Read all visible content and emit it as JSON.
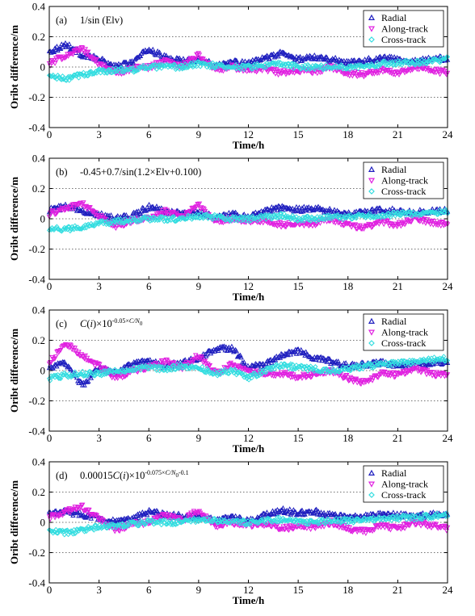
{
  "chart_data": [
    {
      "type": "scatter",
      "panel_label": "(a)",
      "title": "1/sin (Elv)",
      "title_parts": [
        {
          "t": "1/sin (Elv)",
          "style": "normal"
        }
      ],
      "xlabel": "Time/h",
      "ylabel": "Oribt difference/m",
      "xlim": [
        0,
        24
      ],
      "ylim": [
        -0.4,
        0.4
      ],
      "xticks": [
        "0",
        "3",
        "6",
        "9",
        "12",
        "15",
        "18",
        "21",
        "24"
      ],
      "yticks": [
        "0.4",
        "0.2",
        "0",
        "-0.2",
        "-0.4"
      ],
      "grid": "dotted horizontal",
      "legend_position": "top-right",
      "series": [
        {
          "name": "Radial",
          "marker": "triangle-up",
          "color": "#1f1fbf",
          "x": [
            0,
            1,
            2,
            3,
            4,
            5,
            6,
            7,
            8,
            9,
            10,
            11,
            12,
            13,
            14,
            15,
            16,
            17,
            18,
            19,
            20,
            21,
            22,
            23,
            24
          ],
          "y": [
            0.1,
            0.15,
            0.08,
            0.05,
            0.0,
            0.03,
            0.12,
            0.06,
            0.04,
            0.05,
            0.01,
            0.03,
            0.02,
            0.06,
            0.09,
            0.05,
            0.07,
            0.05,
            0.03,
            0.04,
            0.06,
            0.05,
            0.04,
            0.05,
            0.06
          ]
        },
        {
          "name": "Along-track",
          "marker": "triangle-down",
          "color": "#e020e0",
          "x": [
            0,
            1,
            2,
            3,
            4,
            5,
            6,
            7,
            8,
            9,
            10,
            11,
            12,
            13,
            14,
            15,
            16,
            17,
            18,
            19,
            20,
            21,
            22,
            23,
            24
          ],
          "y": [
            0.02,
            0.08,
            0.12,
            0.02,
            -0.04,
            -0.01,
            0.0,
            0.04,
            0.01,
            0.08,
            -0.02,
            0.0,
            -0.02,
            -0.01,
            -0.04,
            -0.02,
            -0.03,
            0.0,
            -0.04,
            -0.05,
            -0.02,
            -0.04,
            0.0,
            -0.02,
            -0.04
          ]
        },
        {
          "name": "Cross-track",
          "marker": "diamond",
          "color": "#33dde0",
          "x": [
            0,
            1,
            2,
            3,
            4,
            5,
            6,
            7,
            8,
            9,
            10,
            11,
            12,
            13,
            14,
            15,
            16,
            17,
            18,
            19,
            20,
            21,
            22,
            23,
            24
          ],
          "y": [
            -0.06,
            -0.08,
            -0.05,
            -0.03,
            -0.02,
            -0.02,
            0.0,
            0.0,
            0.0,
            0.02,
            0.01,
            0.0,
            0.0,
            0.01,
            0.02,
            0.0,
            0.0,
            0.0,
            0.0,
            0.01,
            0.02,
            0.03,
            0.03,
            0.04,
            0.05
          ]
        }
      ]
    },
    {
      "type": "scatter",
      "panel_label": "(b)",
      "title": "-0.45+0.7/sin(1.2×Elv+0.100)",
      "title_parts": [
        {
          "t": "-0.45+0.7/sin(1.2×Elv+0.100)",
          "style": "normal"
        }
      ],
      "xlabel": "Time/h",
      "ylabel": "Oribt difference/m",
      "xlim": [
        0,
        24
      ],
      "ylim": [
        -0.4,
        0.4
      ],
      "xticks": [
        "0",
        "3",
        "6",
        "9",
        "12",
        "15",
        "18",
        "21",
        "24"
      ],
      "yticks": [
        "0.4",
        "0.2",
        "0",
        "-0.2",
        "-0.4"
      ],
      "grid": "dotted horizontal",
      "legend_position": "top-right",
      "series": [
        {
          "name": "Radial",
          "marker": "triangle-up",
          "color": "#1f1fbf",
          "x": [
            0,
            1,
            2,
            3,
            4,
            5,
            6,
            7,
            8,
            9,
            10,
            11,
            12,
            13,
            14,
            15,
            16,
            17,
            18,
            19,
            20,
            21,
            22,
            23,
            24
          ],
          "y": [
            0.06,
            0.08,
            0.05,
            0.03,
            0.0,
            0.02,
            0.08,
            0.05,
            0.04,
            0.04,
            0.01,
            0.03,
            0.01,
            0.05,
            0.08,
            0.06,
            0.07,
            0.05,
            0.03,
            0.04,
            0.06,
            0.05,
            0.04,
            0.05,
            0.06
          ]
        },
        {
          "name": "Along-track",
          "marker": "triangle-down",
          "color": "#e020e0",
          "x": [
            0,
            1,
            2,
            3,
            4,
            5,
            6,
            7,
            8,
            9,
            10,
            11,
            12,
            13,
            14,
            15,
            16,
            17,
            18,
            19,
            20,
            21,
            22,
            23,
            24
          ],
          "y": [
            0.03,
            0.07,
            0.1,
            0.02,
            -0.05,
            -0.01,
            0.0,
            0.05,
            0.01,
            0.09,
            -0.02,
            0.0,
            -0.02,
            -0.01,
            -0.04,
            -0.03,
            -0.03,
            0.0,
            -0.04,
            -0.06,
            -0.02,
            -0.04,
            0.0,
            -0.02,
            -0.04
          ]
        },
        {
          "name": "Cross-track",
          "marker": "diamond",
          "color": "#33dde0",
          "x": [
            0,
            1,
            2,
            3,
            4,
            5,
            6,
            7,
            8,
            9,
            10,
            11,
            12,
            13,
            14,
            15,
            16,
            17,
            18,
            19,
            20,
            21,
            22,
            23,
            24
          ],
          "y": [
            -0.06,
            -0.07,
            -0.05,
            -0.03,
            -0.02,
            -0.01,
            0.0,
            0.0,
            0.0,
            0.02,
            0.01,
            0.0,
            0.0,
            0.01,
            0.02,
            0.0,
            0.0,
            0.01,
            0.01,
            0.02,
            0.02,
            0.03,
            0.03,
            0.04,
            0.05
          ]
        }
      ]
    },
    {
      "type": "scatter",
      "panel_label": "(c)",
      "title": "C(i)×10^(-0.05×C/N0)",
      "title_parts": [
        {
          "t": "C",
          "style": "italic"
        },
        {
          "t": "(",
          "style": "normal"
        },
        {
          "t": "i",
          "style": "italic"
        },
        {
          "t": ")×10",
          "style": "normal"
        },
        {
          "t": "-0.05×",
          "style": "sup"
        },
        {
          "t": "C/N",
          "style": "sup-italic"
        },
        {
          "t": "0",
          "style": "sub"
        }
      ],
      "xlabel": "Time/h",
      "ylabel": "Oribt difference/m",
      "xlim": [
        0,
        24
      ],
      "ylim": [
        -0.4,
        0.4
      ],
      "xticks": [
        "0",
        "3",
        "6",
        "9",
        "12",
        "15",
        "18",
        "21",
        "24"
      ],
      "yticks": [
        "0.4",
        "0.2",
        "0",
        "-0.2",
        "-0.4"
      ],
      "grid": "dotted horizontal",
      "legend_position": "top-right",
      "series": [
        {
          "name": "Radial",
          "marker": "triangle-up",
          "color": "#1f1fbf",
          "x": [
            0,
            1,
            2,
            3,
            4,
            5,
            6,
            7,
            8,
            9,
            10,
            11,
            12,
            13,
            14,
            15,
            16,
            17,
            18,
            19,
            20,
            21,
            22,
            23,
            24
          ],
          "y": [
            0.02,
            0.05,
            -0.1,
            0.02,
            -0.02,
            0.04,
            0.06,
            0.03,
            0.05,
            0.08,
            0.14,
            0.15,
            0.02,
            0.04,
            0.1,
            0.13,
            0.08,
            0.06,
            0.03,
            0.04,
            0.05,
            0.04,
            0.04,
            0.05,
            0.06
          ]
        },
        {
          "name": "Along-track",
          "marker": "triangle-down",
          "color": "#e020e0",
          "x": [
            0,
            1,
            2,
            3,
            4,
            5,
            6,
            7,
            8,
            9,
            10,
            11,
            12,
            13,
            14,
            15,
            16,
            17,
            18,
            19,
            20,
            21,
            22,
            23,
            24
          ],
          "y": [
            0.05,
            0.18,
            0.1,
            0.03,
            -0.05,
            0.0,
            0.02,
            0.06,
            0.02,
            0.1,
            -0.02,
            0.04,
            -0.01,
            -0.02,
            -0.02,
            -0.04,
            -0.03,
            0.0,
            -0.05,
            -0.08,
            -0.02,
            -0.03,
            0.02,
            -0.02,
            -0.03
          ]
        },
        {
          "name": "Cross-track",
          "marker": "diamond",
          "color": "#33dde0",
          "x": [
            0,
            1,
            2,
            3,
            4,
            5,
            6,
            7,
            8,
            9,
            10,
            11,
            12,
            13,
            14,
            15,
            16,
            17,
            18,
            19,
            20,
            21,
            22,
            23,
            24
          ],
          "y": [
            -0.05,
            -0.03,
            -0.02,
            -0.02,
            0.0,
            0.01,
            0.02,
            0.01,
            0.03,
            0.02,
            -0.02,
            0.0,
            -0.05,
            0.0,
            0.04,
            0.02,
            0.01,
            0.0,
            0.01,
            0.03,
            0.04,
            0.05,
            0.06,
            0.07,
            0.08
          ]
        }
      ]
    },
    {
      "type": "scatter",
      "panel_label": "(d)",
      "title": "0.00015C(i)×10^(-0.075×C/N0-0.1)",
      "title_parts": [
        {
          "t": "0.00015",
          "style": "normal"
        },
        {
          "t": "C",
          "style": "italic"
        },
        {
          "t": "(",
          "style": "normal"
        },
        {
          "t": "i",
          "style": "italic"
        },
        {
          "t": ")×10",
          "style": "normal"
        },
        {
          "t": "-0.075×",
          "style": "sup"
        },
        {
          "t": "C/N",
          "style": "sup-italic"
        },
        {
          "t": "0",
          "style": "sub"
        },
        {
          "t": "-0.1",
          "style": "sup"
        }
      ],
      "xlabel": "Time/h",
      "ylabel": "Oribt difference/m",
      "xlim": [
        0,
        24
      ],
      "ylim": [
        -0.4,
        0.4
      ],
      "xticks": [
        "0",
        "3",
        "6",
        "9",
        "12",
        "15",
        "18",
        "21",
        "24"
      ],
      "yticks": [
        "0.4",
        "0.2",
        "0",
        "-0.2",
        "-0.4"
      ],
      "grid": "dotted horizontal",
      "legend_position": "top-right",
      "series": [
        {
          "name": "Radial",
          "marker": "triangle-up",
          "color": "#1f1fbf",
          "x": [
            0,
            1,
            2,
            3,
            4,
            5,
            6,
            7,
            8,
            9,
            10,
            11,
            12,
            13,
            14,
            15,
            16,
            17,
            18,
            19,
            20,
            21,
            22,
            23,
            24
          ],
          "y": [
            0.06,
            0.07,
            0.05,
            0.03,
            0.0,
            0.02,
            0.07,
            0.05,
            0.04,
            0.04,
            0.01,
            0.03,
            0.01,
            0.05,
            0.08,
            0.06,
            0.07,
            0.05,
            0.03,
            0.04,
            0.05,
            0.05,
            0.04,
            0.05,
            0.06
          ]
        },
        {
          "name": "Along-track",
          "marker": "triangle-down",
          "color": "#e020e0",
          "x": [
            0,
            1,
            2,
            3,
            4,
            5,
            6,
            7,
            8,
            9,
            10,
            11,
            12,
            13,
            14,
            15,
            16,
            17,
            18,
            19,
            20,
            21,
            22,
            23,
            24
          ],
          "y": [
            0.03,
            0.07,
            0.1,
            0.02,
            -0.05,
            -0.01,
            0.0,
            0.05,
            0.01,
            0.08,
            -0.02,
            0.0,
            -0.02,
            -0.01,
            -0.04,
            -0.03,
            -0.03,
            0.0,
            -0.04,
            -0.06,
            -0.02,
            -0.04,
            0.0,
            -0.02,
            -0.04
          ]
        },
        {
          "name": "Cross-track",
          "marker": "diamond",
          "color": "#33dde0",
          "x": [
            0,
            1,
            2,
            3,
            4,
            5,
            6,
            7,
            8,
            9,
            10,
            11,
            12,
            13,
            14,
            15,
            16,
            17,
            18,
            19,
            20,
            21,
            22,
            23,
            24
          ],
          "y": [
            -0.06,
            -0.07,
            -0.05,
            -0.03,
            -0.02,
            -0.01,
            0.0,
            0.0,
            0.0,
            0.02,
            0.01,
            0.0,
            0.0,
            0.01,
            0.02,
            0.0,
            0.0,
            0.01,
            0.01,
            0.02,
            0.02,
            0.03,
            0.03,
            0.04,
            0.05
          ]
        }
      ]
    }
  ]
}
